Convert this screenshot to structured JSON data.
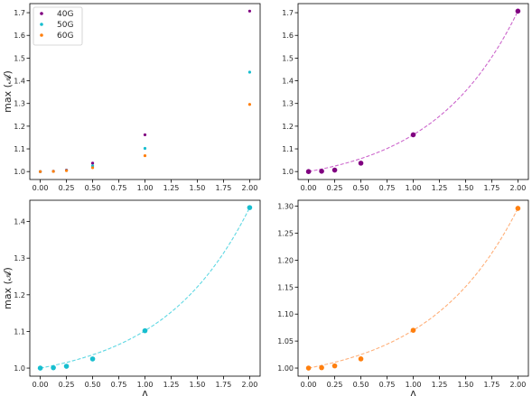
{
  "chart_data": [
    {
      "panel": "top-left",
      "type": "scatter",
      "xlabel": "",
      "ylabel": "max (𝓐)",
      "xlim": [
        -0.1,
        2.1
      ],
      "ylim": [
        0.965,
        1.74
      ],
      "xticks": [
        0.0,
        0.25,
        0.5,
        0.75,
        1.0,
        1.25,
        1.5,
        1.75,
        2.0
      ],
      "xtick_labels": [
        "0.00",
        "0.25",
        "0.50",
        "0.75",
        "1.00",
        "1.25",
        "1.50",
        "1.75",
        "2.00"
      ],
      "yticks": [
        1.0,
        1.1,
        1.2,
        1.3,
        1.4,
        1.5,
        1.6,
        1.7
      ],
      "ytick_labels": [
        "1.0",
        "1.1",
        "1.2",
        "1.3",
        "1.4",
        "1.5",
        "1.6",
        "1.7"
      ],
      "legend": "top-left",
      "series": [
        {
          "name": "40G",
          "color": "#800080",
          "marker_size": 1.6,
          "fit": false,
          "x": [
            0.0,
            0.125,
            0.25,
            0.5,
            1.0,
            2.0
          ],
          "y": [
            1.0,
            1.0015,
            1.0065,
            1.037,
            1.162,
            1.707
          ]
        },
        {
          "name": "50G",
          "color": "#17becf",
          "marker_size": 1.6,
          "fit": false,
          "x": [
            0.0,
            0.125,
            0.25,
            0.5,
            1.0,
            2.0
          ],
          "y": [
            1.0,
            1.001,
            1.005,
            1.025,
            1.102,
            1.438
          ]
        },
        {
          "name": "60G",
          "color": "#ff7f0e",
          "marker_size": 1.6,
          "fit": false,
          "x": [
            0.0,
            0.125,
            0.25,
            0.5,
            1.0,
            2.0
          ],
          "y": [
            1.0,
            1.0007,
            1.004,
            1.017,
            1.07,
            1.296
          ]
        }
      ]
    },
    {
      "panel": "top-right",
      "type": "scatter",
      "xlabel": "",
      "ylabel": "",
      "xlim": [
        -0.1,
        2.1
      ],
      "ylim": [
        0.965,
        1.74
      ],
      "xticks": [
        0.0,
        0.25,
        0.5,
        0.75,
        1.0,
        1.25,
        1.5,
        1.75,
        2.0
      ],
      "xtick_labels": [
        "0.00",
        "0.25",
        "0.50",
        "0.75",
        "1.00",
        "1.25",
        "1.50",
        "1.75",
        "2.00"
      ],
      "yticks": [
        1.0,
        1.1,
        1.2,
        1.3,
        1.4,
        1.5,
        1.6,
        1.7
      ],
      "ytick_labels": [
        "1.0",
        "1.1",
        "1.2",
        "1.3",
        "1.4",
        "1.5",
        "1.6",
        "1.7"
      ],
      "series": [
        {
          "color": "#800080",
          "fit_color": "#cc66cc",
          "marker_size": 2.8,
          "fit": true,
          "x": [
            0.0,
            0.125,
            0.25,
            0.5,
            1.0,
            2.0
          ],
          "y": [
            1.0,
            1.0015,
            1.0065,
            1.037,
            1.162,
            1.707
          ]
        }
      ]
    },
    {
      "panel": "bottom-left",
      "type": "scatter",
      "xlabel": "Λ",
      "ylabel": "max (𝓐)",
      "xlim": [
        -0.1,
        2.1
      ],
      "ylim": [
        0.978,
        1.458
      ],
      "xticks": [
        0.0,
        0.25,
        0.5,
        0.75,
        1.0,
        1.25,
        1.5,
        1.75,
        2.0
      ],
      "xtick_labels": [
        "0.00",
        "0.25",
        "0.50",
        "0.75",
        "1.00",
        "1.25",
        "1.50",
        "1.75",
        "2.00"
      ],
      "yticks": [
        1.0,
        1.1,
        1.2,
        1.3,
        1.4
      ],
      "ytick_labels": [
        "1.0",
        "1.1",
        "1.2",
        "1.3",
        "1.4"
      ],
      "series": [
        {
          "color": "#17becf",
          "fit_color": "#5fd8e3",
          "marker_size": 2.8,
          "fit": true,
          "x": [
            0.0,
            0.125,
            0.25,
            0.5,
            1.0,
            2.0
          ],
          "y": [
            1.0,
            1.001,
            1.005,
            1.025,
            1.102,
            1.438
          ]
        }
      ]
    },
    {
      "panel": "bottom-right",
      "type": "scatter",
      "xlabel": "Λ",
      "ylabel": "",
      "xlim": [
        -0.1,
        2.1
      ],
      "ylim": [
        0.985,
        1.311
      ],
      "xticks": [
        0.0,
        0.25,
        0.5,
        0.75,
        1.0,
        1.25,
        1.5,
        1.75,
        2.0
      ],
      "xtick_labels": [
        "0.00",
        "0.25",
        "0.50",
        "0.75",
        "1.00",
        "1.25",
        "1.50",
        "1.75",
        "2.00"
      ],
      "yticks": [
        1.0,
        1.05,
        1.1,
        1.15,
        1.2,
        1.25,
        1.3
      ],
      "ytick_labels": [
        "1.00",
        "1.05",
        "1.10",
        "1.15",
        "1.20",
        "1.25",
        "1.30"
      ],
      "series": [
        {
          "color": "#ff7f0e",
          "fit_color": "#ffb07a",
          "marker_size": 2.8,
          "fit": true,
          "x": [
            0.0,
            0.125,
            0.25,
            0.5,
            1.0,
            2.0
          ],
          "y": [
            1.0,
            1.0007,
            1.004,
            1.017,
            1.07,
            1.296
          ]
        }
      ]
    }
  ]
}
